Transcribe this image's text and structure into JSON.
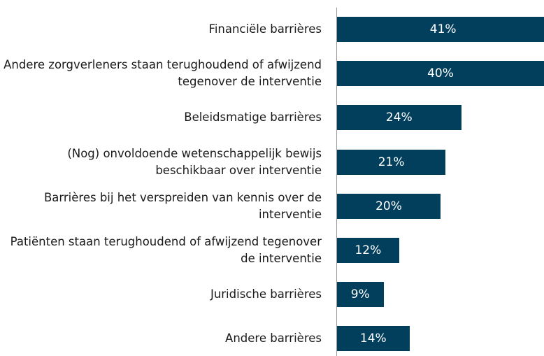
{
  "chart_data": {
    "type": "barh",
    "categories": [
      "Financiële barrières",
      "Andere zorgverleners staan terughoudend of afwijzend tegenover de interventie",
      "Beleidsmatige barrières",
      "(Nog) onvoldoende wetenschappelijk bewijs beschikbaar over interventie",
      "Barrières bij het verspreiden van kennis over de interventie",
      "Patiënten staan terughoudend of afwijzend tegenover de interventie",
      "Juridische barrières",
      "Andere barrières"
    ],
    "values": [
      41,
      40,
      24,
      21,
      20,
      12,
      9,
      14
    ],
    "value_labels": [
      "41%",
      "40%",
      "24%",
      "21%",
      "20%",
      "12%",
      "9%",
      "14%"
    ],
    "color": "#023f5c",
    "xlim": [
      0,
      40
    ]
  }
}
